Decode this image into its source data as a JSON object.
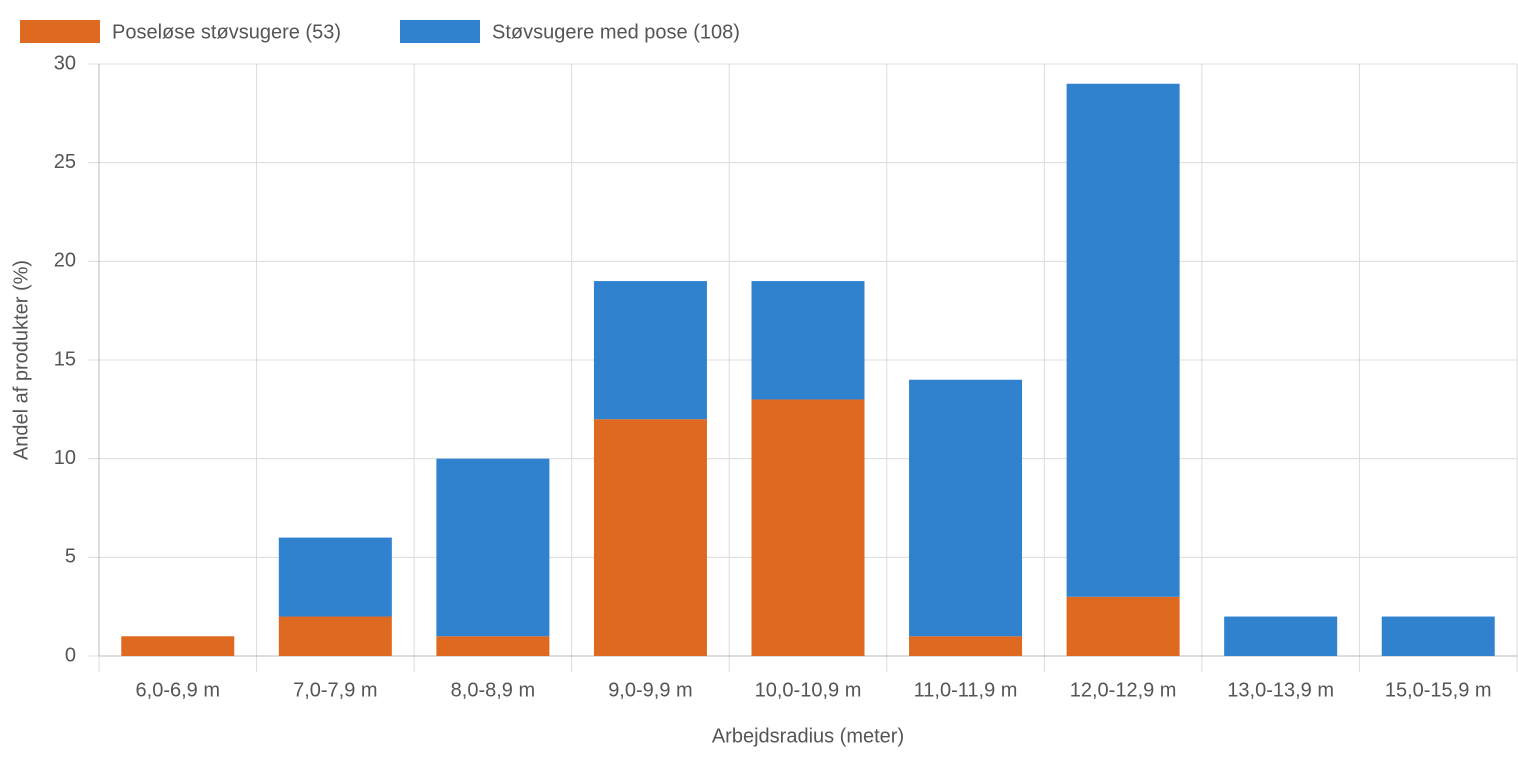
{
  "chart_data": {
    "type": "stacked-bar",
    "x_label": "Arbejdsradius (meter)",
    "y_label": "Andel af produkter (%)",
    "categories": [
      "6,0-6,9 m",
      "7,0-7,9 m",
      "8,0-8,9 m",
      "9,0-9,9 m",
      "10,0-10,9 m",
      "11,0-11,9 m",
      "12,0-12,9 m",
      "13,0-13,9 m",
      "15,0-15,9 m"
    ],
    "series": [
      {
        "name": "Poseløse støvsugere (53)",
        "color": "#de6a21",
        "values": [
          1,
          2,
          1,
          12,
          13,
          1,
          3,
          0,
          0
        ]
      },
      {
        "name": "Støvsugere med pose (108)",
        "color": "#3182ce",
        "values": [
          0,
          4,
          9,
          7,
          6,
          13,
          26,
          2,
          2
        ]
      }
    ],
    "ylim": [
      0,
      30
    ],
    "yticks": [
      0,
      5,
      10,
      15,
      20,
      25,
      30
    ],
    "grid": true
  }
}
